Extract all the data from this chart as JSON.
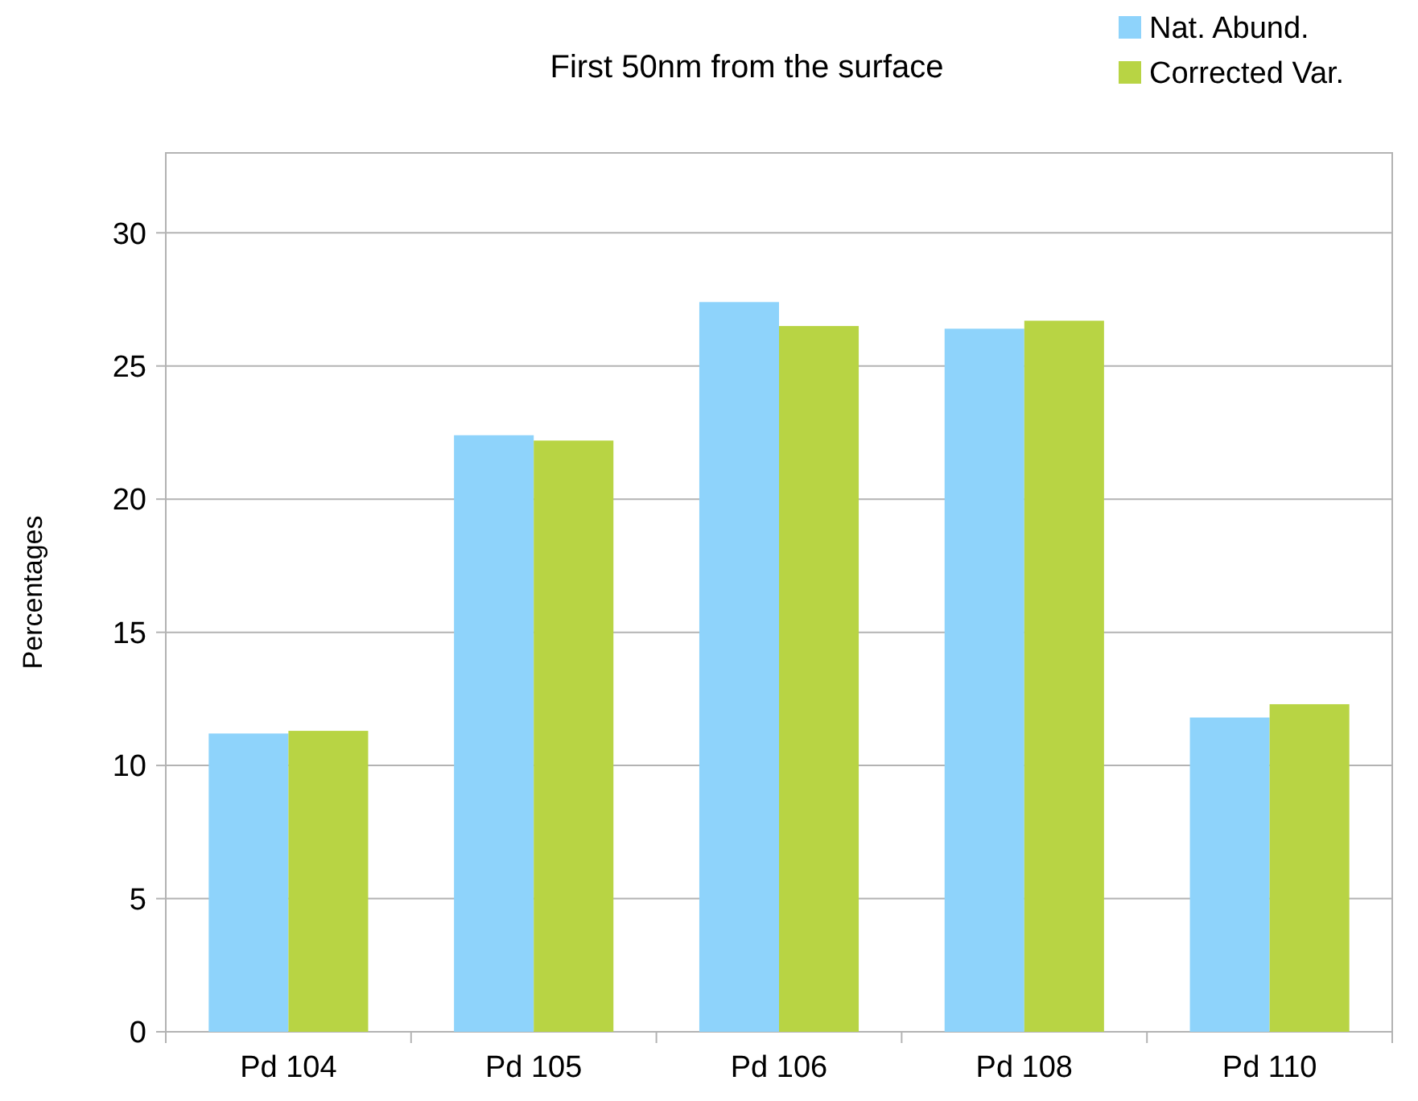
{
  "chart_data": {
    "type": "bar",
    "title": "First 50nm from the surface",
    "ylabel": "Percentages",
    "categories": [
      "Pd 104",
      "Pd 105",
      "Pd 106",
      "Pd 108",
      "Pd 110"
    ],
    "series": [
      {
        "name": "Nat. Abund.",
        "color": "#8ed3fb",
        "values": [
          11.2,
          22.4,
          27.4,
          26.4,
          11.8
        ]
      },
      {
        "name": "Corrected Var.",
        "color": "#b8d444",
        "values": [
          11.3,
          22.2,
          26.5,
          26.7,
          12.3
        ]
      }
    ],
    "ylim": [
      0,
      33
    ],
    "yticks": [
      0,
      5,
      10,
      15,
      20,
      25,
      30
    ],
    "grid": "y",
    "legend": "top right"
  }
}
